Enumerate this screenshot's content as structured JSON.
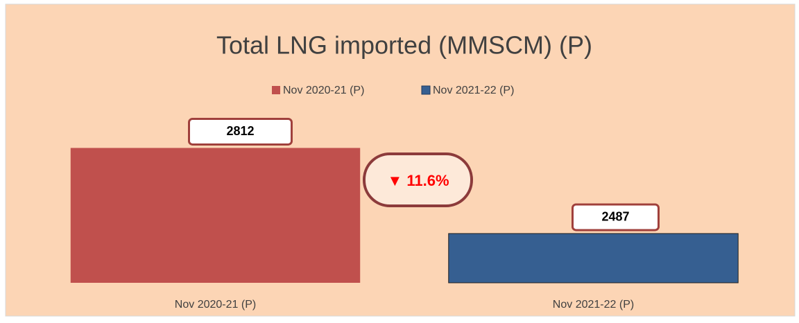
{
  "chart_data": {
    "type": "bar",
    "title": "Total LNG imported (MMSCM) (P)",
    "categories": [
      "Nov  2020-21 (P)",
      "Nov 2021-22 (P)"
    ],
    "values": [
      2812,
      2487
    ],
    "colors": [
      "#c0504d",
      "#365f91"
    ],
    "ylim": [
      2300,
      2900
    ],
    "annotation": "▼ 11.6%",
    "legend": "top"
  }
}
